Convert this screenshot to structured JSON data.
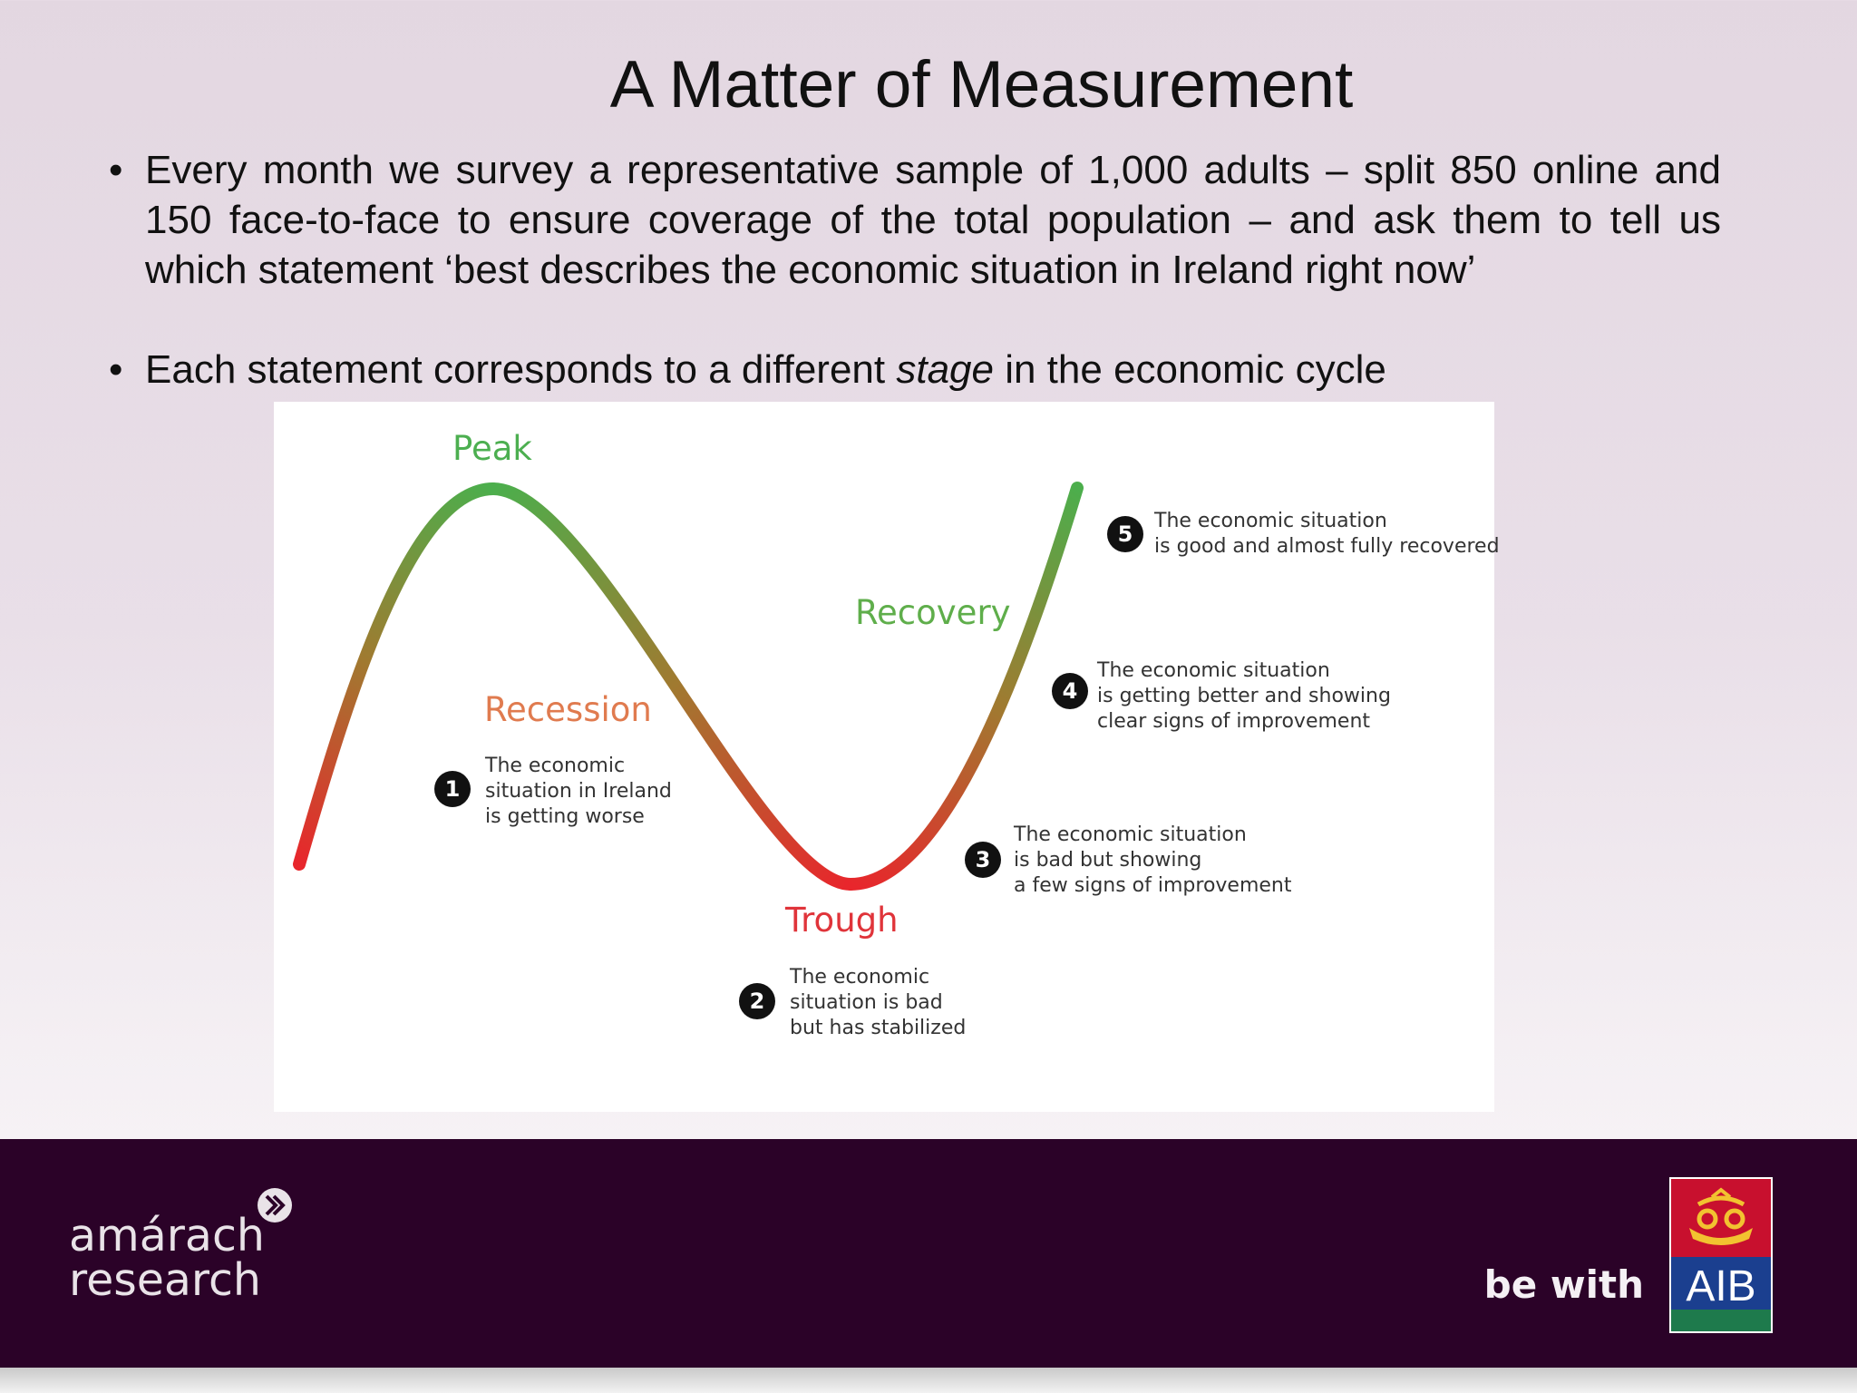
{
  "slide": {
    "title": "A Matter of Measurement",
    "bullet_1": "Every month we survey a representative sample of 1,000 adults – split 850 online and 150 face-to-face to ensure coverage of the total population – and ask them to tell us which statement ‘best describes the economic situation in Ireland right now’",
    "bullet_2_prefix": "Each statement corresponds to a different ",
    "bullet_2_emphasis": "stage",
    "bullet_2_suffix": " in the economic cycle"
  },
  "diagram": {
    "stages": {
      "peak": "Peak",
      "recession": "Recession",
      "trough": "Trough",
      "recovery": "Recovery"
    },
    "colors": {
      "peak": "#4caf50",
      "recession": "#e07b4f",
      "trough": "#e0343a",
      "recovery": "#5fae4b"
    },
    "statements": [
      {
        "number": "1",
        "text": "The economic\nsituation in Ireland\nis getting worse"
      },
      {
        "number": "2",
        "text": "The economic\nsituation is bad\nbut has stabilized"
      },
      {
        "number": "3",
        "text": "The economic situation\nis bad but showing\na few signs of improvement"
      },
      {
        "number": "4",
        "text": "The economic situation\nis getting better and showing\nclear signs of improvement"
      },
      {
        "number": "5",
        "text": "The economic situation\nis good and almost fully recovered"
      }
    ]
  },
  "footer": {
    "brand_line_1": "amárach",
    "brand_line_2": "research",
    "tagline": "be with",
    "logo_text": "AIB",
    "colors": {
      "background": "#2b0228",
      "logo_blue": "#1b3f8f",
      "logo_red": "#c8102e",
      "logo_green": "#1e7a4c"
    }
  }
}
